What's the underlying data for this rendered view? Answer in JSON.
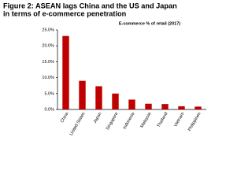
{
  "chart_data": {
    "type": "bar",
    "title": [
      "Figure 2: ASEAN lags China and the US and Japan",
      "in terms of e-commerce penetration"
    ],
    "series": [
      {
        "name": "E-commerce % of retail (2017)",
        "color": "#c00000",
        "values": [
          23.1,
          9.0,
          7.3,
          5.0,
          3.1,
          1.8,
          1.7,
          1.0,
          0.9
        ]
      }
    ],
    "categories": [
      "China",
      "United States",
      "Japan",
      "Singapore",
      "Indonesia",
      "Malaysia",
      "Thailand",
      "Vietnam",
      "Philippines"
    ],
    "ylim": [
      0,
      25
    ],
    "yticks": [
      {
        "value": 0,
        "label": "0.0%"
      },
      {
        "value": 5,
        "label": "5.0%"
      },
      {
        "value": 10,
        "label": "10.0%"
      },
      {
        "value": 15,
        "label": "15.0%"
      },
      {
        "value": 20,
        "label": "20.0%"
      },
      {
        "value": 25,
        "label": "25.0%"
      }
    ],
    "grid": false
  }
}
